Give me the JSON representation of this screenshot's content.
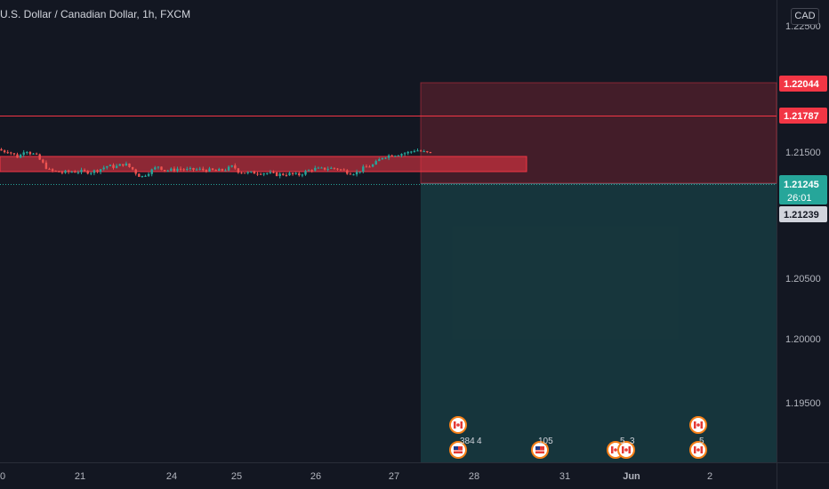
{
  "header": {
    "title": "U.S. Dollar / Canadian Dollar, 1h, FXCM",
    "currency": "CAD"
  },
  "chart_data": {
    "type": "candlestick",
    "ylim": [
      1.1905,
      1.2267
    ],
    "y_ticks": [
      "1.22500",
      "1.21500",
      "1.20500",
      "1.20000",
      "1.19500"
    ],
    "x_ticks": [
      "0",
      "21",
      "24",
      "25",
      "26",
      "27",
      "28",
      "31",
      "Jun",
      "2"
    ],
    "price_labels": {
      "stop": "1.22044",
      "resistance": "1.21787",
      "current": "1.21245",
      "countdown": "26:01",
      "entry": "1.21239"
    },
    "colors": {
      "up": "#26a69a",
      "down": "#ef5350",
      "label_red": "#f23645",
      "label_grey": "#d1d4dc",
      "label_teal": "#26a69a"
    },
    "events": [
      {
        "flag": "ca",
        "count": ""
      },
      {
        "flag": "us",
        "count": "384"
      },
      {
        "flag": "us",
        "count": "4"
      },
      {
        "flag": "us",
        "count": "105"
      },
      {
        "flag": "ca",
        "count": "5"
      },
      {
        "flag": "ca",
        "count": "3"
      },
      {
        "flag": "ca",
        "count": ""
      },
      {
        "flag": "ca",
        "count": "5"
      }
    ]
  }
}
